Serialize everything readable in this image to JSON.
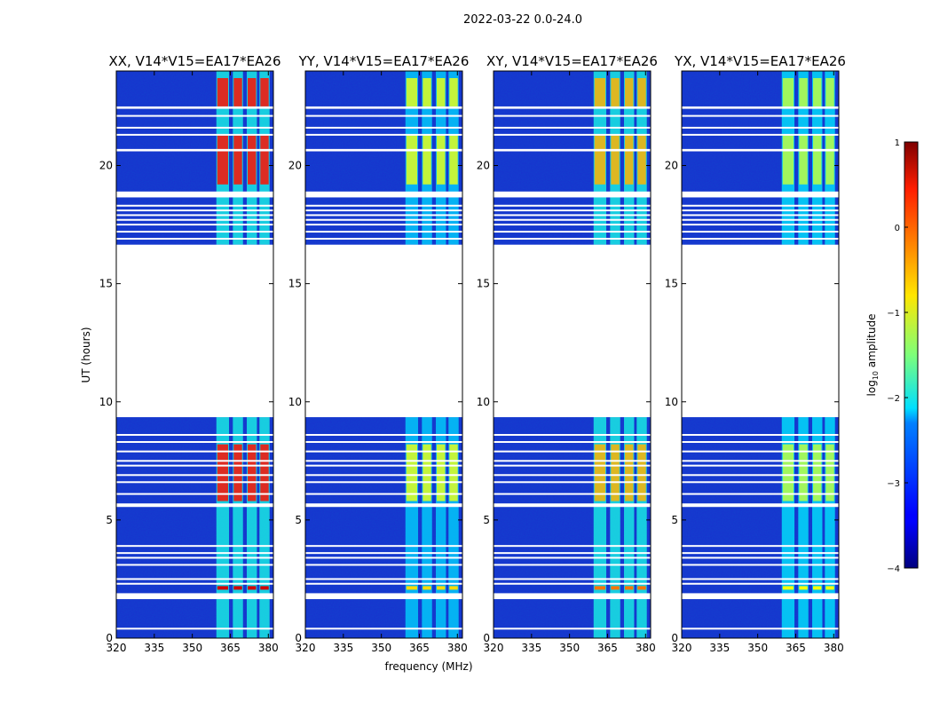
{
  "figure_title": "2022-03-22 0.0-24.0",
  "colors": {
    "background_blue": "#1a2fcf",
    "gap": "#ffffff"
  },
  "chart_data": {
    "type": "heatmap",
    "ylabel": "UT (hours)",
    "xlabel": "frequency (MHz)",
    "xlim": [
      320,
      382
    ],
    "ylim": [
      0,
      24
    ],
    "xticks": [
      320,
      335,
      350,
      365,
      380
    ],
    "yticks": [
      0,
      5,
      10,
      15,
      20
    ],
    "data_gaps_ut": [
      [
        9.35,
        16.65
      ],
      [
        1.65,
        1.9
      ],
      [
        5.55,
        5.7
      ],
      [
        18.65,
        18.9
      ],
      [
        22.4,
        22.5
      ],
      [
        20.6,
        20.7
      ]
    ],
    "line_gaps_ut": [
      0.4,
      2.3,
      2.5,
      3.1,
      3.4,
      3.6,
      3.9,
      6.1,
      6.6,
      6.9,
      7.3,
      7.5,
      7.9,
      8.3,
      8.6,
      16.9,
      17.2,
      17.5,
      17.7,
      17.9,
      18.1,
      18.3,
      21.3,
      21.6,
      22.1
    ],
    "band_mhz": [
      [
        359.5,
        364.5
      ],
      [
        366.0,
        370.0
      ],
      [
        371.5,
        375.5
      ],
      [
        376.5,
        380.5
      ]
    ],
    "panels": [
      {
        "title": "XX, V14*V15=EA17*EA26",
        "band_level_low": -2.0,
        "band_level_high": 0.3
      },
      {
        "title": "YY, V14*V15=EA17*EA26",
        "band_level_low": -2.3,
        "band_level_high": -1.0
      },
      {
        "title": "XY, V14*V15=EA17*EA26",
        "band_level_low": -2.0,
        "band_level_high": -0.5
      },
      {
        "title": "YX, V14*V15=EA17*EA26",
        "band_level_low": -2.2,
        "band_level_high": -1.2
      }
    ],
    "colorbar": {
      "label": "log10 amplitude",
      "label_base": "log",
      "label_sub": "10",
      "label_rest": " amplitude",
      "range": [
        -4,
        1
      ],
      "ticks": [
        1,
        0,
        -1,
        -2,
        -3,
        -4
      ],
      "tick_labels": [
        "1",
        "0",
        "−1",
        "−2",
        "−3",
        "−4"
      ],
      "colormap": "jet"
    }
  }
}
